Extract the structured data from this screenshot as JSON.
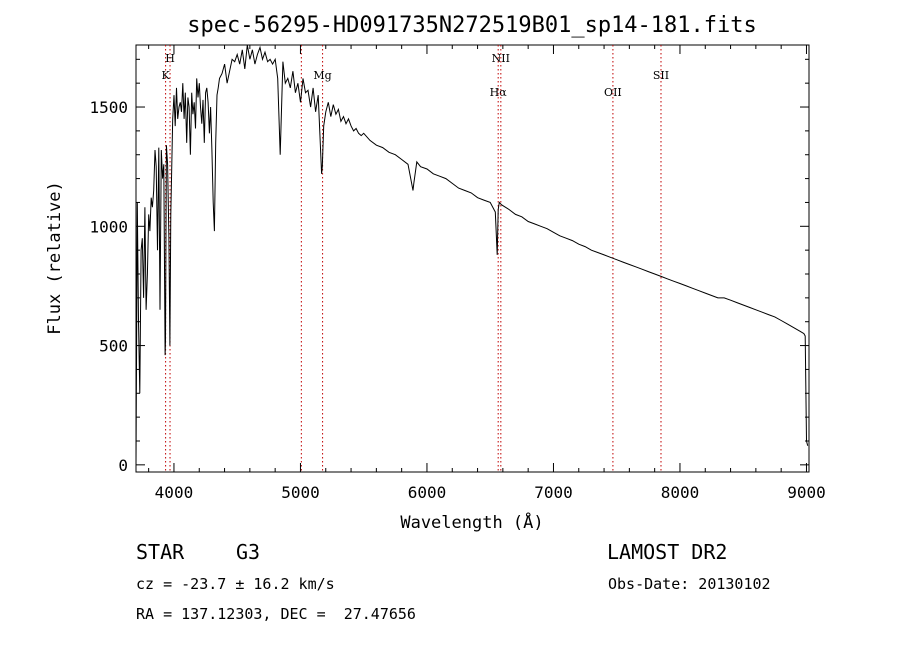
{
  "chart_data": {
    "type": "line",
    "title": "spec-56295-HD091735N272519B01_sp14-181.fits",
    "xlabel": "Wavelength (Å)",
    "ylabel": "Flux (relative)",
    "xlim": [
      3700,
      9020
    ],
    "ylim": [
      -30,
      1760
    ],
    "x_ticks": [
      4000,
      5000,
      6000,
      7000,
      8000,
      9000
    ],
    "y_ticks": [
      0,
      500,
      1000,
      1500
    ],
    "grid": false,
    "line_color": "#000000",
    "marker_color": "#c00000",
    "series": [
      {
        "x": [
          3700,
          3710,
          3720,
          3730,
          3740,
          3750,
          3760,
          3770,
          3780,
          3790,
          3800,
          3810,
          3820,
          3830,
          3840,
          3850,
          3860,
          3870,
          3880,
          3890,
          3900,
          3910,
          3920,
          3930,
          3933,
          3940,
          3950,
          3960,
          3968,
          3975,
          3990,
          4000,
          4010,
          4020,
          4030,
          4040,
          4050,
          4060,
          4070,
          4080,
          4090,
          4101,
          4110,
          4120,
          4130,
          4140,
          4150,
          4160,
          4170,
          4180,
          4190,
          4200,
          4210,
          4220,
          4230,
          4240,
          4250,
          4260,
          4270,
          4280,
          4290,
          4300,
          4310,
          4320,
          4330,
          4340,
          4350,
          4360,
          4380,
          4400,
          4420,
          4440,
          4460,
          4480,
          4500,
          4520,
          4540,
          4560,
          4580,
          4600,
          4620,
          4640,
          4660,
          4680,
          4700,
          4720,
          4740,
          4760,
          4780,
          4800,
          4820,
          4840,
          4861,
          4880,
          4900,
          4920,
          4940,
          4960,
          4980,
          5000,
          5020,
          5040,
          5060,
          5080,
          5100,
          5120,
          5140,
          5167,
          5173,
          5184,
          5200,
          5220,
          5240,
          5260,
          5280,
          5300,
          5320,
          5340,
          5360,
          5380,
          5400,
          5420,
          5440,
          5460,
          5480,
          5500,
          5550,
          5600,
          5650,
          5700,
          5750,
          5800,
          5850,
          5890,
          5896,
          5920,
          5950,
          6000,
          6050,
          6100,
          6150,
          6200,
          6250,
          6300,
          6350,
          6400,
          6450,
          6500,
          6540,
          6555,
          6563,
          6572,
          6590,
          6650,
          6700,
          6750,
          6800,
          6850,
          6900,
          6950,
          7000,
          7050,
          7100,
          7150,
          7200,
          7250,
          7300,
          7350,
          7400,
          7450,
          7500,
          7550,
          7600,
          7650,
          7700,
          7750,
          7800,
          7850,
          7900,
          7950,
          8000,
          8050,
          8100,
          8150,
          8200,
          8250,
          8300,
          8350,
          8400,
          8450,
          8500,
          8550,
          8600,
          8650,
          8700,
          8750,
          8800,
          8850,
          8900,
          8950,
          8980,
          8990,
          9000,
          9010
        ],
        "y": [
          0,
          1100,
          600,
          300,
          900,
          950,
          700,
          1080,
          650,
          800,
          1050,
          980,
          1120,
          1080,
          1150,
          1320,
          1250,
          900,
          1330,
          650,
          1320,
          1200,
          1260,
          460,
          520,
          1340,
          1260,
          950,
          500,
          1050,
          1450,
          1550,
          1420,
          1580,
          1450,
          1500,
          1520,
          1480,
          1600,
          1450,
          1560,
          1350,
          1540,
          1500,
          1300,
          1560,
          1470,
          1520,
          1410,
          1620,
          1540,
          1600,
          1500,
          1430,
          1530,
          1350,
          1560,
          1580,
          1520,
          1390,
          1500,
          1320,
          1100,
          980,
          1350,
          1550,
          1580,
          1620,
          1640,
          1680,
          1600,
          1650,
          1700,
          1690,
          1720,
          1680,
          1740,
          1660,
          1760,
          1700,
          1740,
          1680,
          1720,
          1750,
          1700,
          1730,
          1690,
          1700,
          1680,
          1700,
          1620,
          1300,
          1690,
          1600,
          1620,
          1580,
          1650,
          1560,
          1600,
          1520,
          1620,
          1560,
          1570,
          1500,
          1580,
          1480,
          1550,
          1220,
          1250,
          1420,
          1480,
          1520,
          1460,
          1510,
          1470,
          1490,
          1440,
          1460,
          1430,
          1450,
          1420,
          1400,
          1410,
          1390,
          1380,
          1390,
          1360,
          1340,
          1330,
          1310,
          1300,
          1280,
          1260,
          1150,
          1180,
          1270,
          1250,
          1240,
          1220,
          1210,
          1200,
          1180,
          1160,
          1150,
          1140,
          1120,
          1110,
          1100,
          1060,
          880,
          1070,
          1100,
          1090,
          1070,
          1050,
          1040,
          1020,
          1010,
          1000,
          990,
          975,
          960,
          950,
          940,
          925,
          915,
          900,
          890,
          880,
          870,
          860,
          850,
          840,
          830,
          820,
          810,
          800,
          790,
          780,
          770,
          760,
          750,
          740,
          730,
          720,
          710,
          700,
          700,
          690,
          680,
          670,
          660,
          650,
          640,
          630,
          620,
          605,
          590,
          575,
          560,
          550,
          540,
          100,
          80
        ]
      }
    ],
    "line_markers": [
      {
        "x": 3934,
        "label": "K",
        "row": 2
      },
      {
        "x": 3969,
        "label": "H",
        "row": 1
      },
      {
        "x": 5007,
        "label": "",
        "row": 0
      },
      {
        "x": 5175,
        "label": "Mg",
        "row": 2
      },
      {
        "x": 6563,
        "label": "Hα",
        "row": 3
      },
      {
        "x": 6584,
        "label": "NII",
        "row": 1
      },
      {
        "x": 7470,
        "label": "OII",
        "row": 3
      },
      {
        "x": 7850,
        "label": "SII",
        "row": 2
      }
    ]
  },
  "info": {
    "object_class": "STAR",
    "subclass": "G3",
    "survey": "LAMOST DR2",
    "cz": "cz = -23.7 ± 16.2 km/s",
    "obs_date": "Obs-Date: 20130102",
    "coords": "RA = 137.12303, DEC =  27.47656"
  }
}
